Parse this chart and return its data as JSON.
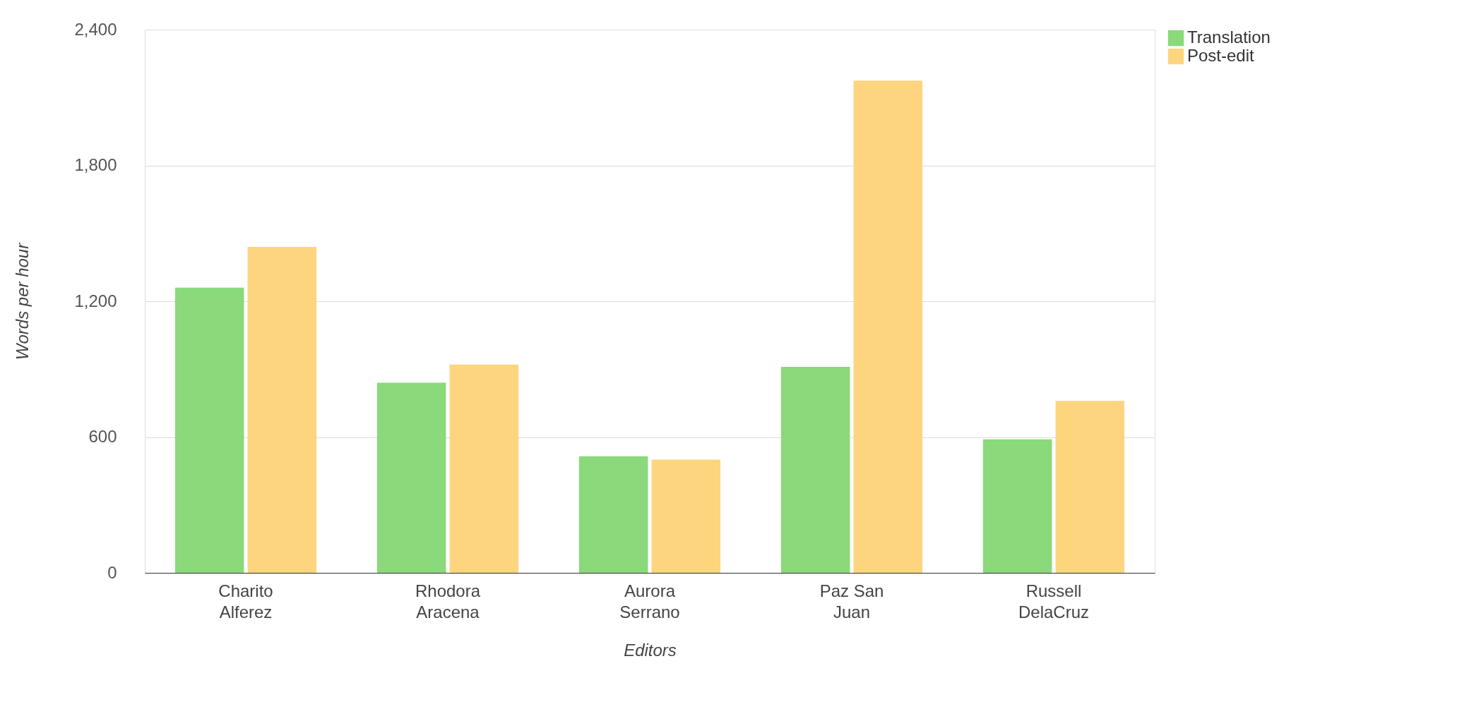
{
  "chart_data": {
    "type": "bar",
    "xlabel": "Editors",
    "ylabel": "Words per hour",
    "categories": [
      "Charito\nAlferez",
      "Rhodora\nAracena",
      "Aurora\nSerrano",
      "Paz San\nJuan",
      "Russell\nDelaCruz"
    ],
    "series": [
      {
        "name": "Translation",
        "color": "#8ad97a",
        "values": [
          1260,
          840,
          515,
          910,
          590
        ]
      },
      {
        "name": "Post-edit",
        "color": "#fdd57e",
        "values": [
          1440,
          920,
          500,
          2175,
          760
        ]
      }
    ],
    "ylim": [
      0,
      2400
    ],
    "yticks": [
      0,
      600,
      {
        "value": 1200,
        "label": "1,200"
      },
      {
        "value": 1800,
        "label": "1,800"
      },
      {
        "value": 2400,
        "label": "2,400"
      }
    ],
    "grid": "y",
    "legend": "top right"
  }
}
